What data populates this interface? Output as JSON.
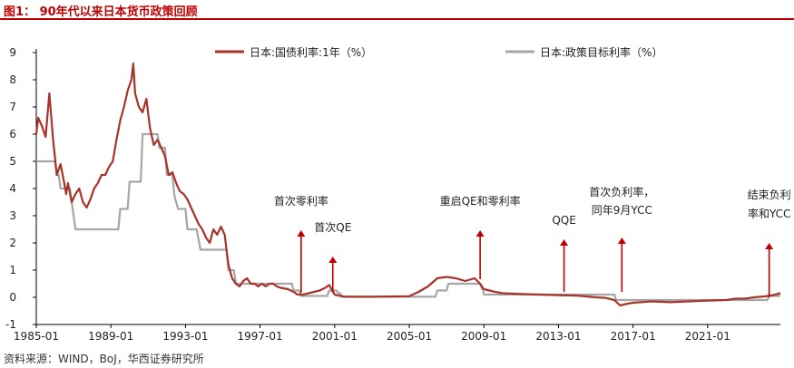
{
  "header": {
    "figure_title": "图1：  90年代以来日本货币政策回顾"
  },
  "footer": {
    "source": "资料来源：WIND，BoJ，华西证券研究所"
  },
  "chart_data": {
    "type": "line",
    "title": "",
    "xlabel": "",
    "ylabel": "",
    "xlim": [
      1985.0,
      2024.9
    ],
    "ylim": [
      -1,
      9
    ],
    "y_ticks": [
      -1,
      0,
      1,
      2,
      3,
      4,
      5,
      6,
      7,
      8,
      9
    ],
    "x_ticks": [
      "1985-01",
      "1989-01",
      "1993-01",
      "1997-01",
      "2001-01",
      "2005-01",
      "2009-01",
      "2013-01",
      "2017-01",
      "2021-01"
    ],
    "grid": false,
    "legend_position": "top",
    "colors": {
      "jgb": "#a8332b",
      "policy": "#a6a6a6",
      "arrow": "#c00000"
    },
    "series": [
      {
        "name": "日本:国债利率:1年（%）",
        "x": [
          1985.0,
          1985.1,
          1985.3,
          1985.5,
          1985.7,
          1985.9,
          1986.1,
          1986.3,
          1986.5,
          1986.6,
          1986.7,
          1986.9,
          1987.1,
          1987.3,
          1987.5,
          1987.7,
          1987.9,
          1988.1,
          1988.3,
          1988.5,
          1988.7,
          1988.9,
          1989.1,
          1989.3,
          1989.5,
          1989.7,
          1989.9,
          1990.1,
          1990.2,
          1990.3,
          1990.5,
          1990.7,
          1990.9,
          1991.1,
          1991.3,
          1991.5,
          1991.7,
          1991.9,
          1992.1,
          1992.3,
          1992.5,
          1992.7,
          1992.9,
          1993.1,
          1993.3,
          1993.5,
          1993.7,
          1993.9,
          1994.1,
          1994.3,
          1994.5,
          1994.7,
          1994.9,
          1995.1,
          1995.3,
          1995.5,
          1995.7,
          1995.9,
          1996.1,
          1996.3,
          1996.5,
          1996.7,
          1996.9,
          1997.1,
          1997.3,
          1997.5,
          1997.7,
          1997.9,
          1998.1,
          1998.5,
          1998.8,
          1999.0,
          1999.3,
          1999.6,
          1999.9,
          2000.2,
          2000.5,
          2000.7,
          2001.0,
          2001.3,
          2001.6,
          2002.0,
          2003.0,
          2004.0,
          2005.0,
          2005.5,
          2006.0,
          2006.5,
          2007.0,
          2007.5,
          2008.0,
          2008.5,
          2008.8,
          2009.0,
          2009.3,
          2009.6,
          2010.0,
          2011.0,
          2012.0,
          2013.0,
          2014.0,
          2015.0,
          2015.5,
          2016.0,
          2016.3,
          2016.6,
          2017.0,
          2018.0,
          2019.0,
          2020.0,
          2021.0,
          2022.0,
          2022.5,
          2023.0,
          2023.5,
          2024.0,
          2024.5,
          2024.9
        ],
        "values": [
          6.0,
          6.6,
          6.3,
          5.9,
          7.5,
          5.8,
          4.5,
          4.9,
          4.2,
          3.8,
          4.2,
          3.5,
          3.8,
          4.0,
          3.5,
          3.3,
          3.6,
          4.0,
          4.2,
          4.5,
          4.5,
          4.8,
          5.0,
          5.8,
          6.5,
          7.0,
          7.6,
          8.0,
          8.6,
          7.5,
          7.0,
          6.8,
          7.3,
          6.2,
          5.6,
          5.8,
          5.5,
          5.2,
          4.5,
          4.6,
          4.2,
          3.9,
          3.8,
          3.6,
          3.3,
          3.0,
          2.7,
          2.5,
          2.2,
          2.0,
          2.5,
          2.3,
          2.6,
          2.3,
          1.2,
          0.7,
          0.5,
          0.4,
          0.6,
          0.7,
          0.5,
          0.5,
          0.4,
          0.5,
          0.4,
          0.5,
          0.5,
          0.4,
          0.35,
          0.3,
          0.2,
          0.1,
          0.1,
          0.15,
          0.2,
          0.25,
          0.35,
          0.45,
          0.1,
          0.05,
          0.02,
          0.02,
          0.02,
          0.03,
          0.04,
          0.2,
          0.4,
          0.7,
          0.75,
          0.7,
          0.6,
          0.7,
          0.5,
          0.3,
          0.25,
          0.2,
          0.15,
          0.12,
          0.1,
          0.08,
          0.06,
          0.0,
          -0.02,
          -0.1,
          -0.3,
          -0.25,
          -0.2,
          -0.15,
          -0.18,
          -0.15,
          -0.12,
          -0.1,
          -0.05,
          -0.05,
          0.0,
          0.03,
          0.08,
          0.15
        ]
      },
      {
        "name": "日本:政策目标利率（%）",
        "x": [
          1985.0,
          1986.0,
          1986.1,
          1986.2,
          1986.3,
          1986.8,
          1986.9,
          1987.1,
          1989.4,
          1989.5,
          1989.9,
          1990.0,
          1990.6,
          1990.7,
          1991.5,
          1991.6,
          1991.9,
          1992.0,
          1992.3,
          1992.4,
          1992.6,
          1993.0,
          1993.1,
          1993.6,
          1993.8,
          1995.2,
          1995.3,
          1995.6,
          1995.7,
          1998.7,
          1998.8,
          1999.1,
          1999.2,
          2000.6,
          2000.7,
          2001.1,
          2001.2,
          2001.3,
          2001.4,
          2006.4,
          2006.5,
          2007.0,
          2007.1,
          2008.8,
          2008.9,
          2008.95,
          2009.0,
          2013.0,
          2016.0,
          2016.1,
          2024.2,
          2024.3,
          2024.9
        ],
        "values": [
          5.0,
          5.0,
          4.5,
          4.5,
          4.0,
          4.0,
          3.5,
          2.5,
          2.5,
          3.25,
          3.25,
          4.25,
          4.25,
          6.0,
          6.0,
          5.5,
          5.5,
          4.5,
          4.5,
          3.75,
          3.25,
          3.25,
          2.5,
          2.5,
          1.75,
          1.75,
          1.0,
          1.0,
          0.5,
          0.5,
          0.25,
          0.25,
          0.05,
          0.05,
          0.25,
          0.25,
          0.15,
          0.15,
          0.02,
          0.02,
          0.25,
          0.25,
          0.5,
          0.5,
          0.3,
          0.3,
          0.1,
          0.1,
          0.1,
          -0.1,
          -0.1,
          0.05,
          0.05
        ]
      }
    ],
    "annotations": [
      {
        "x": 1999.2,
        "lines": [
          "首次零利率"
        ]
      },
      {
        "x": 2000.9,
        "lines": [
          "首次QE"
        ]
      },
      {
        "x": 2008.8,
        "lines": [
          "重启QE和零利率"
        ]
      },
      {
        "x": 2013.3,
        "lines": [
          "QQE"
        ]
      },
      {
        "x": 2016.4,
        "lines": [
          "首次负利率，",
          "同年9月YCC"
        ]
      },
      {
        "x": 2024.3,
        "lines": [
          "结束负利",
          "率和YCC"
        ]
      }
    ]
  }
}
